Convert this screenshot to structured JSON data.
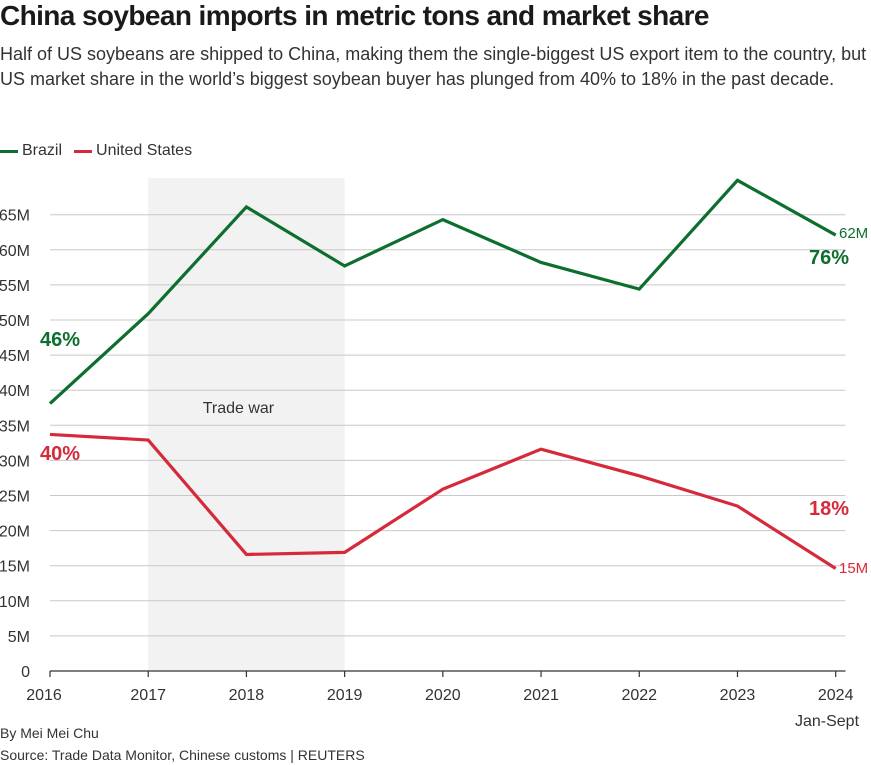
{
  "title": "China soybean imports in metric tons and market share",
  "subtitle": "Half of US soybeans are shipped to China, making them the single-biggest US export item to the country, but US market share in the world’s biggest soybean buyer has plunged from 40% to 18% in the past decade.",
  "byline": "By Mei Mei Chu",
  "source": "Source: Trade Data Monitor, Chinese customs | REUTERS",
  "colors": {
    "brazil": "#0d6e2d",
    "us": "#d62a3b",
    "grid": "#c8c8c8",
    "shade": "#f2f2f2",
    "axis": "#333333"
  },
  "chart_data": {
    "type": "line",
    "x": [
      2016,
      2017,
      2018,
      2019,
      2020,
      2021,
      2022,
      2023,
      2024
    ],
    "x_tick_labels": [
      "2016",
      "2017",
      "2018",
      "2019",
      "2020",
      "2021",
      "2022",
      "2023",
      "2024"
    ],
    "x_last_sublabel": "Jan-Sept",
    "y_ticks": [
      0,
      5,
      10,
      15,
      20,
      25,
      30,
      35,
      40,
      45,
      50,
      55,
      60,
      65
    ],
    "y_tick_labels": [
      "0",
      "5M",
      "10M",
      "15M",
      "20M",
      "25M",
      "30M",
      "35M",
      "40M",
      "45M",
      "50M",
      "55M",
      "60M",
      "65M"
    ],
    "ylim": [
      0,
      70
    ],
    "xlim": [
      2016,
      2024.1
    ],
    "grid": true,
    "legend_position": "top-left",
    "series": [
      {
        "name": "Brazil",
        "color": "#0d6e2d",
        "values": [
          38.1,
          50.9,
          66.1,
          57.7,
          64.3,
          58.2,
          54.4,
          69.9,
          62.1
        ],
        "start_share": "46%",
        "end_share": "76%",
        "end_value_label": "62M"
      },
      {
        "name": "United States",
        "color": "#d62a3b",
        "values": [
          33.7,
          32.9,
          16.6,
          16.9,
          25.9,
          31.6,
          27.8,
          23.5,
          14.6
        ],
        "start_share": "40%",
        "end_share": "18%",
        "end_value_label": "15M"
      }
    ],
    "shaded_region": {
      "from": 2017,
      "to": 2019,
      "label": "Trade war"
    }
  }
}
